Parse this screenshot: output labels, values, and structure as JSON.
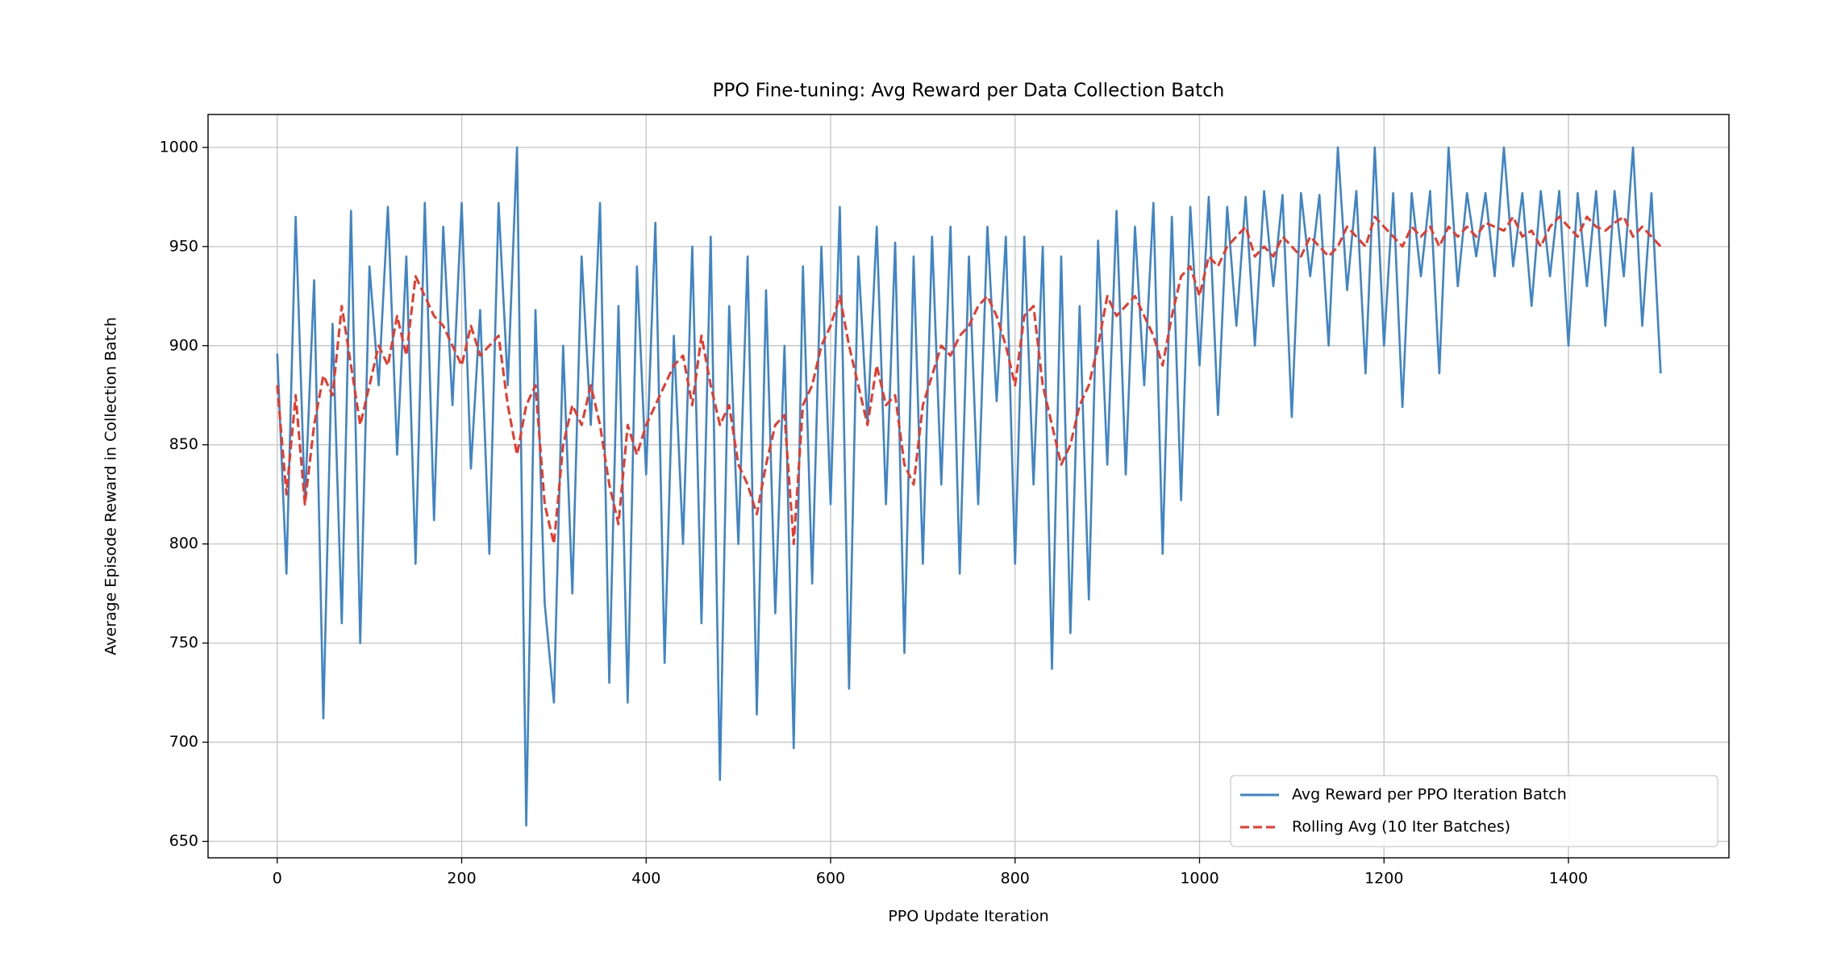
{
  "chart_data": {
    "type": "line",
    "title": "PPO Fine-tuning: Avg Reward per Data Collection Batch",
    "xlabel": "PPO Update Iteration",
    "ylabel": "Average Episode Reward in Collection Batch",
    "x": [
      0,
      10,
      20,
      30,
      40,
      50,
      60,
      70,
      80,
      90,
      100,
      110,
      120,
      130,
      140,
      150,
      160,
      170,
      180,
      190,
      200,
      210,
      220,
      230,
      240,
      250,
      260,
      270,
      280,
      290,
      300,
      310,
      320,
      330,
      340,
      350,
      360,
      370,
      380,
      390,
      400,
      410,
      420,
      430,
      440,
      450,
      460,
      470,
      480,
      490,
      500,
      510,
      520,
      530,
      540,
      550,
      560,
      570,
      580,
      590,
      600,
      610,
      620,
      630,
      640,
      650,
      660,
      670,
      680,
      690,
      700,
      710,
      720,
      730,
      740,
      750,
      760,
      770,
      780,
      790,
      800,
      810,
      820,
      830,
      840,
      850,
      860,
      870,
      880,
      890,
      900,
      910,
      920,
      930,
      940,
      950,
      960,
      970,
      980,
      990,
      1000,
      1010,
      1020,
      1030,
      1040,
      1050,
      1060,
      1070,
      1080,
      1090,
      1100,
      1110,
      1120,
      1130,
      1140,
      1150,
      1160,
      1170,
      1180,
      1190,
      1200,
      1210,
      1220,
      1230,
      1240,
      1250,
      1260,
      1270,
      1280,
      1290,
      1300,
      1310,
      1320,
      1330,
      1340,
      1350,
      1360,
      1370,
      1380,
      1390,
      1400,
      1410,
      1420,
      1430,
      1440,
      1450,
      1460,
      1470,
      1480,
      1490,
      1500
    ],
    "series": [
      {
        "name": "Avg Reward per PPO Iteration Batch",
        "color": "#3d85c6",
        "dashed": false,
        "values": [
          896,
          785,
          965,
          820,
          933,
          712,
          911,
          760,
          968,
          750,
          940,
          880,
          970,
          845,
          945,
          790,
          972,
          812,
          960,
          870,
          972,
          838,
          918,
          795,
          972,
          880,
          1000,
          658,
          918,
          770,
          720,
          900,
          775,
          945,
          860,
          972,
          730,
          920,
          720,
          940,
          835,
          962,
          740,
          905,
          800,
          950,
          760,
          955,
          681,
          920,
          800,
          945,
          714,
          928,
          765,
          900,
          697,
          940,
          780,
          950,
          820,
          970,
          727,
          945,
          860,
          960,
          820,
          952,
          745,
          945,
          790,
          955,
          830,
          960,
          785,
          945,
          820,
          960,
          872,
          955,
          790,
          955,
          830,
          950,
          737,
          945,
          755,
          920,
          772,
          953,
          840,
          968,
          835,
          960,
          880,
          972,
          795,
          965,
          822,
          970,
          890,
          975,
          865,
          970,
          910,
          975,
          900,
          978,
          930,
          976,
          864,
          977,
          935,
          976,
          900,
          1000,
          928,
          978,
          886,
          1000,
          900,
          977,
          869,
          977,
          935,
          978,
          886,
          1000,
          930,
          977,
          945,
          977,
          935,
          1000,
          940,
          977,
          920,
          978,
          935,
          978,
          900,
          977,
          930,
          978,
          910,
          978,
          935,
          1000,
          910,
          977,
          886
        ]
      },
      {
        "name": "Rolling Avg (10 Iter Batches)",
        "color": "#e8392b",
        "dashed": true,
        "values": [
          880,
          825,
          875,
          820,
          860,
          885,
          875,
          920,
          890,
          860,
          880,
          900,
          890,
          915,
          895,
          935,
          925,
          915,
          910,
          900,
          890,
          910,
          895,
          900,
          905,
          870,
          845,
          870,
          880,
          820,
          800,
          850,
          870,
          860,
          880,
          860,
          830,
          810,
          860,
          845,
          860,
          870,
          880,
          890,
          895,
          870,
          905,
          880,
          860,
          870,
          840,
          830,
          815,
          840,
          860,
          865,
          800,
          870,
          880,
          900,
          910,
          925,
          900,
          880,
          860,
          890,
          870,
          875,
          840,
          830,
          870,
          885,
          900,
          895,
          905,
          910,
          920,
          925,
          915,
          900,
          880,
          915,
          920,
          880,
          860,
          840,
          850,
          870,
          880,
          900,
          925,
          915,
          920,
          925,
          915,
          905,
          890,
          915,
          935,
          940,
          925,
          945,
          940,
          950,
          955,
          960,
          945,
          950,
          945,
          955,
          950,
          945,
          955,
          950,
          945,
          950,
          960,
          955,
          950,
          965,
          960,
          955,
          950,
          960,
          955,
          960,
          950,
          960,
          955,
          960,
          955,
          962,
          960,
          958,
          965,
          955,
          958,
          950,
          960,
          965,
          960,
          955,
          965,
          960,
          958,
          962,
          965,
          955,
          960,
          955,
          950
        ]
      }
    ],
    "xlim": [
      -75,
      1574
    ],
    "ylim": [
      641.7,
      1016.6
    ],
    "xticks": [
      0,
      200,
      400,
      600,
      800,
      1000,
      1200,
      1400
    ],
    "yticks": [
      650,
      700,
      750,
      800,
      850,
      900,
      950,
      1000
    ],
    "grid": true,
    "legend": "lower right"
  }
}
